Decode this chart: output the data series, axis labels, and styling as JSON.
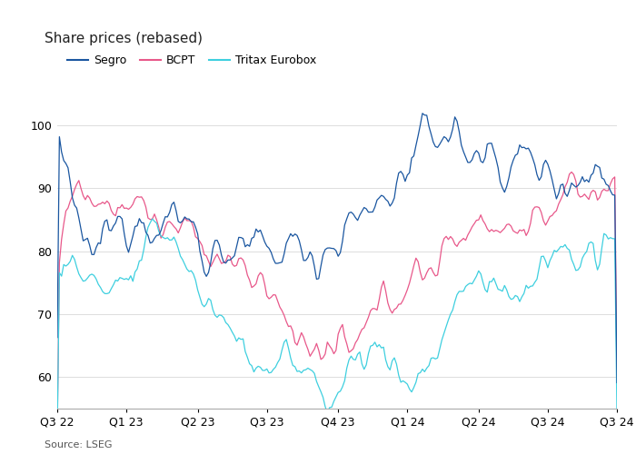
{
  "title": "Share prices (rebased)",
  "source": "Source: LSEG",
  "legend": [
    "Segro",
    "BCPT",
    "Tritax Eurobox"
  ],
  "colors": [
    "#1a56a0",
    "#e8588a",
    "#3ecfdf"
  ],
  "ylim": [
    55,
    104
  ],
  "yticks": [
    60,
    70,
    80,
    90,
    100
  ],
  "quarter_labels": [
    "Q3 22",
    "Q1 23",
    "Q2 23",
    "Q3 23",
    "Q4 23",
    "Q1 24",
    "Q2 24",
    "Q3 24",
    "Q3 24"
  ],
  "background_color": "#ffffff",
  "grid_color": "#dddddd",
  "title_fontsize": 11,
  "legend_fontsize": 9,
  "tick_fontsize": 9,
  "source_fontsize": 8
}
